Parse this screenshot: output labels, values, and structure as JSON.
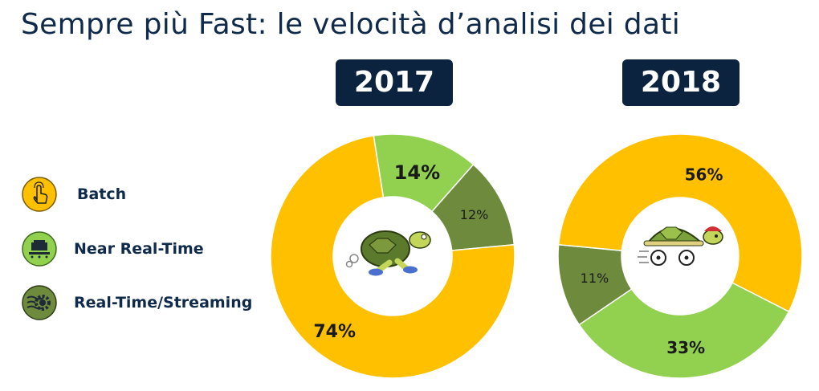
{
  "title": "Sempre più Fast: le velocità d’analisi dei dati",
  "legend": [
    {
      "label": "Batch",
      "color": "#FFC000",
      "icon": "hand-pointer-icon"
    },
    {
      "label": "Near Real-Time",
      "color": "#92D050",
      "icon": "server-icon"
    },
    {
      "label": "Real-Time/Streaming",
      "color": "#6E8B3D",
      "icon": "gear-stream-icon"
    }
  ],
  "chart_data": [
    {
      "type": "donut",
      "title": "2017",
      "categories": [
        "Batch",
        "Near Real-Time",
        "Real-Time/Streaming"
      ],
      "values": [
        74,
        14,
        12
      ],
      "labels": [
        "74%",
        "14%",
        "12%"
      ],
      "colors": [
        "#FFC000",
        "#92D050",
        "#6E8B3D"
      ],
      "center_image": "turtle-running-icon"
    },
    {
      "type": "donut",
      "title": "2018",
      "categories": [
        "Batch",
        "Near Real-Time",
        "Real-Time/Streaming"
      ],
      "values": [
        56,
        33,
        11
      ],
      "labels": [
        "56%",
        "33%",
        "11%"
      ],
      "colors": [
        "#FFC000",
        "#92D050",
        "#6E8B3D"
      ],
      "center_image": "turtle-on-wheels-icon"
    }
  ]
}
